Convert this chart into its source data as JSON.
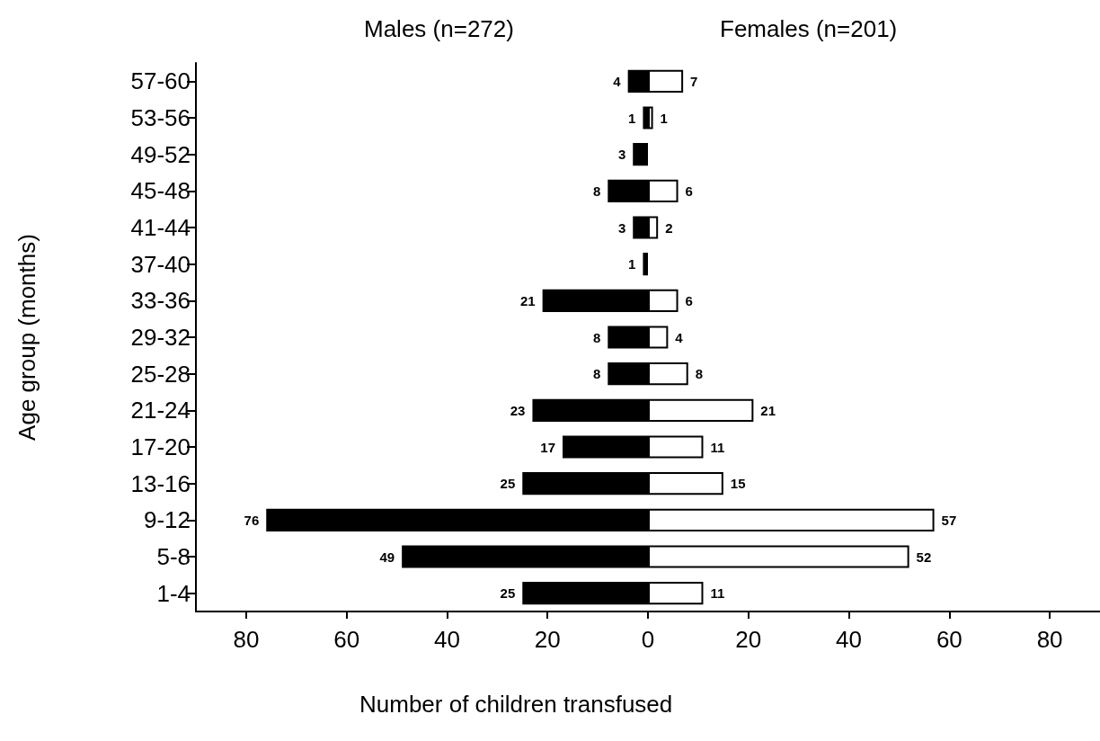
{
  "chart_data": [
    {
      "type": "bar",
      "orientation": "horizontal",
      "title": "Males (n=272)",
      "xlabel": "Number of children transfused",
      "ylabel": "Age group (months)",
      "categories": [
        "57-60",
        "53-56",
        "49-52",
        "45-48",
        "41-44",
        "37-40",
        "33-36",
        "29-32",
        "25-28",
        "21-24",
        "17-20",
        "13-16",
        "9-12",
        "5-8",
        "1-4"
      ],
      "series": [
        {
          "color": "#000000",
          "values": [
            4,
            1,
            3,
            8,
            3,
            1,
            21,
            8,
            8,
            23,
            17,
            25,
            76,
            49,
            25
          ]
        }
      ],
      "xlim": [
        90,
        0
      ],
      "xticks": [
        80,
        60,
        40,
        20,
        0
      ],
      "data_labels": true,
      "grid": false
    },
    {
      "type": "bar",
      "orientation": "horizontal",
      "title": "Females (n=201)",
      "categories": [
        null,
        null,
        null,
        null,
        null,
        null,
        null,
        null,
        null,
        null,
        null,
        null,
        null,
        null,
        null
      ],
      "series": [
        {
          "color": "#ffffff",
          "values": [
            7,
            1,
            null,
            6,
            2,
            null,
            6,
            4,
            8,
            21,
            11,
            15,
            57,
            52,
            11
          ]
        }
      ],
      "xlim": [
        0,
        90
      ],
      "xticks": [
        {
          "value": 0,
          "label": null
        },
        20,
        40,
        60,
        80
      ],
      "data_labels": true,
      "grid": false
    }
  ]
}
